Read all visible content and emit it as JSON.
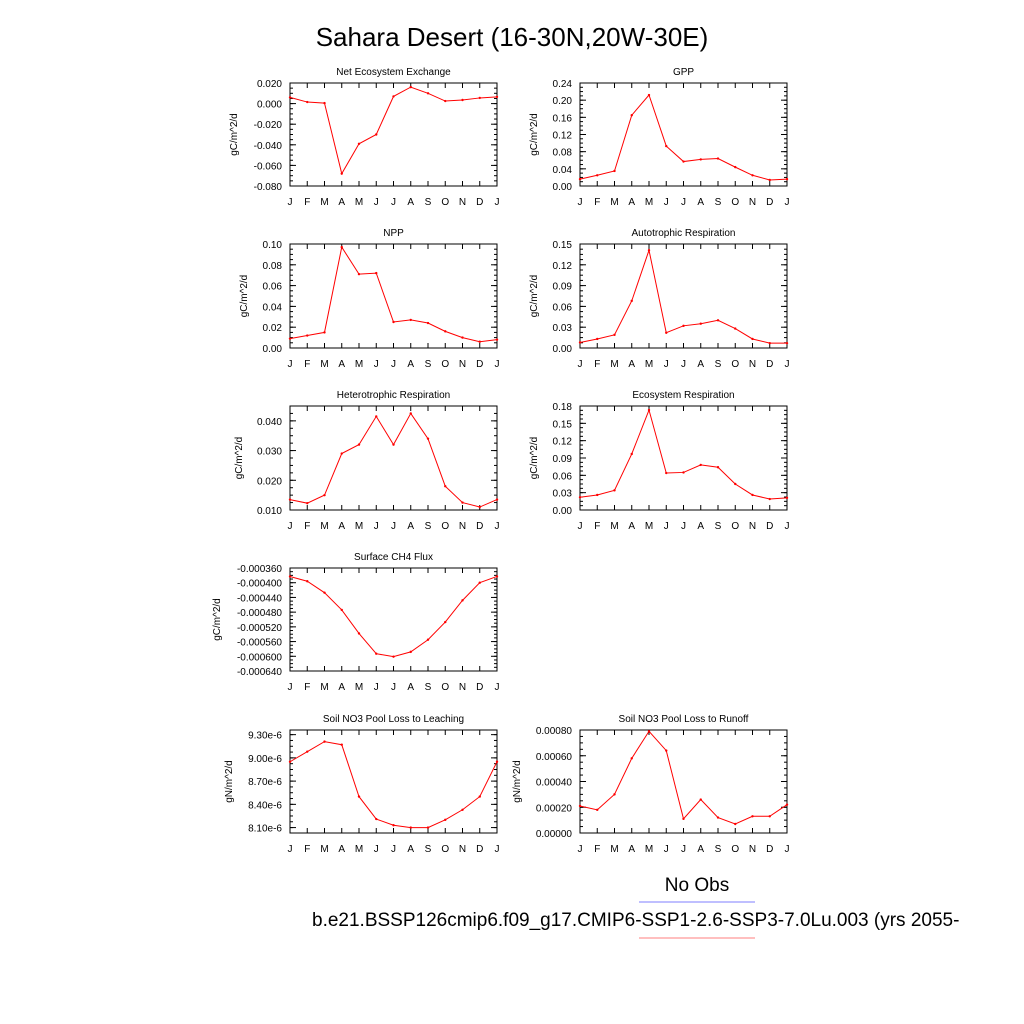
{
  "page": {
    "title": "Sahara Desert (16-30N,20W-30E)",
    "legend": {
      "obs_label": "No Obs",
      "obs_color": "#7f7fff",
      "case_label": "b.e21.BSSP126cmip6.f09_g17.CMIP6-SSP1-2.6-SSP3-7.0Lu.003 (yrs 2055-",
      "case_color": "#ff7f7f"
    }
  },
  "line_color": "#ff0000",
  "chart_data": [
    {
      "type": "line",
      "title": "Net Ecosystem Exchange",
      "ylabel": "gC/m^2/d",
      "categories": [
        "J",
        "F",
        "M",
        "A",
        "M",
        "J",
        "J",
        "A",
        "S",
        "O",
        "N",
        "D",
        "J"
      ],
      "values": [
        0.006,
        0.0015,
        0.0005,
        -0.068,
        -0.039,
        -0.03,
        0.007,
        0.016,
        0.01,
        0.0025,
        0.0035,
        0.0055,
        0.0065
      ],
      "ylim": [
        -0.08,
        0.02
      ],
      "yticks": [
        -0.08,
        -0.06,
        -0.04,
        -0.02,
        0.0,
        0.02
      ],
      "yticklabels": [
        "-0.080",
        "-0.060",
        "-0.040",
        "-0.020",
        "0.000",
        "0.020"
      ]
    },
    {
      "type": "line",
      "title": "GPP",
      "ylabel": "gC/m^2/d",
      "categories": [
        "J",
        "F",
        "M",
        "A",
        "M",
        "J",
        "J",
        "A",
        "S",
        "O",
        "N",
        "D",
        "J"
      ],
      "values": [
        0.016,
        0.025,
        0.035,
        0.165,
        0.212,
        0.093,
        0.057,
        0.062,
        0.064,
        0.044,
        0.025,
        0.014,
        0.016
      ],
      "ylim": [
        0.0,
        0.24
      ],
      "yticks": [
        0.0,
        0.04,
        0.08,
        0.12,
        0.16,
        0.2,
        0.24
      ],
      "yticklabels": [
        "0.00",
        "0.04",
        "0.08",
        "0.12",
        "0.16",
        "0.20",
        "0.24"
      ]
    },
    {
      "type": "line",
      "title": "NPP",
      "ylabel": "gC/m^2/d",
      "categories": [
        "J",
        "F",
        "M",
        "A",
        "M",
        "J",
        "J",
        "A",
        "S",
        "O",
        "N",
        "D",
        "J"
      ],
      "values": [
        0.009,
        0.012,
        0.015,
        0.097,
        0.071,
        0.072,
        0.025,
        0.027,
        0.024,
        0.016,
        0.01,
        0.006,
        0.008
      ],
      "ylim": [
        0.0,
        0.1
      ],
      "yticks": [
        0.0,
        0.02,
        0.04,
        0.06,
        0.08,
        0.1
      ],
      "yticklabels": [
        "0.00",
        "0.02",
        "0.04",
        "0.06",
        "0.08",
        "0.10"
      ]
    },
    {
      "type": "line",
      "title": "Autotrophic Respiration",
      "ylabel": "gC/m^2/d",
      "categories": [
        "J",
        "F",
        "M",
        "A",
        "M",
        "J",
        "J",
        "A",
        "S",
        "O",
        "N",
        "D",
        "J"
      ],
      "values": [
        0.008,
        0.013,
        0.019,
        0.068,
        0.141,
        0.022,
        0.032,
        0.035,
        0.04,
        0.028,
        0.013,
        0.007,
        0.007
      ],
      "ylim": [
        0.0,
        0.15
      ],
      "yticks": [
        0.0,
        0.03,
        0.06,
        0.09,
        0.12,
        0.15
      ],
      "yticklabels": [
        "0.00",
        "0.03",
        "0.06",
        "0.09",
        "0.12",
        "0.15"
      ]
    },
    {
      "type": "line",
      "title": "Heterotrophic Respiration",
      "ylabel": "gC/m^2/d",
      "categories": [
        "J",
        "F",
        "M",
        "A",
        "M",
        "J",
        "J",
        "A",
        "S",
        "O",
        "N",
        "D",
        "J"
      ],
      "values": [
        0.0135,
        0.0123,
        0.015,
        0.029,
        0.032,
        0.0415,
        0.032,
        0.0425,
        0.034,
        0.018,
        0.0125,
        0.011,
        0.0135
      ],
      "ylim": [
        0.01,
        0.045
      ],
      "yticks": [
        0.01,
        0.02,
        0.03,
        0.04
      ],
      "yticklabels": [
        "0.010",
        "0.020",
        "0.030",
        "0.040"
      ]
    },
    {
      "type": "line",
      "title": "Ecosystem Respiration",
      "ylabel": "gC/m^2/d",
      "categories": [
        "J",
        "F",
        "M",
        "A",
        "M",
        "J",
        "J",
        "A",
        "S",
        "O",
        "N",
        "D",
        "J"
      ],
      "values": [
        0.022,
        0.026,
        0.034,
        0.097,
        0.173,
        0.064,
        0.065,
        0.078,
        0.074,
        0.045,
        0.026,
        0.019,
        0.021
      ],
      "ylim": [
        0.0,
        0.18
      ],
      "yticks": [
        0.0,
        0.03,
        0.06,
        0.09,
        0.12,
        0.15,
        0.18
      ],
      "yticklabels": [
        "0.00",
        "0.03",
        "0.06",
        "0.09",
        "0.12",
        "0.15",
        "0.18"
      ]
    },
    {
      "type": "line",
      "title": "Surface CH4 Flux",
      "ylabel": "gC/m^2/d",
      "categories": [
        "J",
        "F",
        "M",
        "A",
        "M",
        "J",
        "J",
        "A",
        "S",
        "O",
        "N",
        "D",
        "J"
      ],
      "values": [
        -0.000383,
        -0.000396,
        -0.000427,
        -0.000474,
        -0.000538,
        -0.000593,
        -0.000601,
        -0.000588,
        -0.000555,
        -0.000507,
        -0.000448,
        -0.0004,
        -0.000383
      ],
      "ylim": [
        -0.00064,
        -0.00036
      ],
      "yticks": [
        -0.00064,
        -0.0006,
        -0.00056,
        -0.00052,
        -0.00048,
        -0.00044,
        -0.0004,
        -0.00036
      ],
      "yticklabels": [
        "-0.000640",
        "-0.000600",
        "-0.000560",
        "-0.000520",
        "-0.000480",
        "-0.000440",
        "-0.000400",
        "-0.000360"
      ]
    },
    {
      "type": "line",
      "title": "Soil NO3 Pool Loss to Leaching",
      "ylabel": "gN/m^2/d",
      "categories": [
        "J",
        "F",
        "M",
        "A",
        "M",
        "J",
        "J",
        "A",
        "S",
        "O",
        "N",
        "D",
        "J"
      ],
      "values": [
        8.95e-06,
        9.08e-06,
        9.21e-06,
        9.17e-06,
        8.5e-06,
        8.21e-06,
        8.13e-06,
        8.1e-06,
        8.1e-06,
        8.2e-06,
        8.33e-06,
        8.5e-06,
        8.95e-06
      ],
      "ylim": [
        8.03e-06,
        9.36e-06
      ],
      "yticks": [
        8.1e-06,
        8.4e-06,
        8.7e-06,
        9e-06,
        9.3e-06
      ],
      "yticklabels": [
        "8.10e-6",
        "8.40e-6",
        "8.70e-6",
        "9.00e-6",
        "9.30e-6"
      ]
    },
    {
      "type": "line",
      "title": "Soil NO3 Pool Loss to Runoff",
      "ylabel": "gN/m^2/d",
      "categories": [
        "J",
        "F",
        "M",
        "A",
        "M",
        "J",
        "J",
        "A",
        "S",
        "O",
        "N",
        "D",
        "J"
      ],
      "values": [
        0.00021,
        0.00018,
        0.0003,
        0.00058,
        0.00079,
        0.00064,
        0.00011,
        0.00026,
        0.00012,
        7e-05,
        0.00013,
        0.00013,
        0.00022
      ],
      "ylim": [
        0.0,
        0.0008
      ],
      "yticks": [
        0.0,
        0.0002,
        0.0004,
        0.0006,
        0.0008
      ],
      "yticklabels": [
        "0.00000",
        "0.00020",
        "0.00040",
        "0.00060",
        "0.00080"
      ]
    }
  ]
}
